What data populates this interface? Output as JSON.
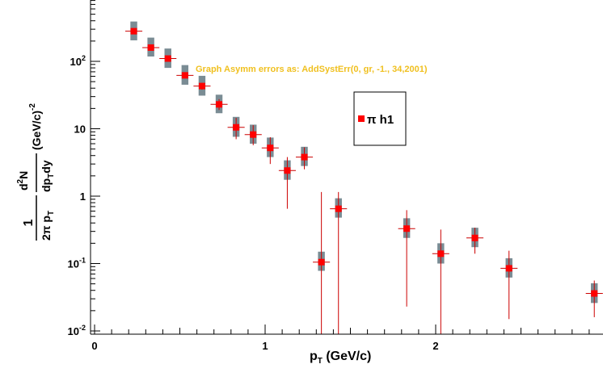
{
  "chart_data": {
    "type": "scatter",
    "title": "",
    "xlabel": "p",
    "xlabel_sub": "T",
    "xlabel_unit": " (GeV/c)",
    "ylabel": {
      "frac1_num": "1",
      "frac1_den_a": "2π p",
      "frac1_den_sub": "T",
      "frac2_num_a": "d",
      "frac2_num_sup": "2",
      "frac2_num_b": "N",
      "frac2_den_a": "dp",
      "frac2_den_sub": "T",
      "frac2_den_b": "dy",
      "unit_a": "(GeV/c)",
      "unit_sup": "-2"
    },
    "xlim": [
      0,
      3.0
    ],
    "ylim": [
      0.01,
      1000
    ],
    "yscale": "log",
    "grid": false,
    "x_ticks": [
      0,
      1,
      2
    ],
    "x_tick_labels": [
      "0",
      "1",
      "2"
    ],
    "y_ticks": [
      {
        "base": "10",
        "exp": "-2",
        "value": 0.01
      },
      {
        "base": "10",
        "exp": "-1",
        "value": 0.1
      },
      {
        "base": "1",
        "exp": "",
        "value": 1
      },
      {
        "base": "10",
        "exp": "",
        "value": 10
      },
      {
        "base": "10",
        "exp": "2",
        "value": 100
      }
    ],
    "annotation": "Graph Asymm errors as: AddSystErr(0, gr, -1., 34,2001)",
    "annotation_color": "#f0c020",
    "series": [
      {
        "name": "π h1",
        "marker_color": "#ff0000",
        "error_color": "#cc0000",
        "syst_box_color": "#7a8c94",
        "points": [
          {
            "x": 0.23,
            "y": 280,
            "ylo": 265,
            "yhi": 295,
            "slo": 205,
            "shi": 390,
            "dx": 0.05
          },
          {
            "x": 0.33,
            "y": 160,
            "ylo": 150,
            "yhi": 170,
            "slo": 118,
            "shi": 225,
            "dx": 0.05
          },
          {
            "x": 0.43,
            "y": 110,
            "ylo": 103,
            "yhi": 117,
            "slo": 80,
            "shi": 155,
            "dx": 0.05
          },
          {
            "x": 0.53,
            "y": 62,
            "ylo": 57,
            "yhi": 67,
            "slo": 45,
            "shi": 88,
            "dx": 0.05
          },
          {
            "x": 0.63,
            "y": 43,
            "ylo": 38,
            "yhi": 48,
            "slo": 31,
            "shi": 61,
            "dx": 0.05
          },
          {
            "x": 0.73,
            "y": 23,
            "ylo": 19,
            "yhi": 27.5,
            "slo": 17,
            "shi": 32,
            "dx": 0.05
          },
          {
            "x": 0.83,
            "y": 10.5,
            "ylo": 7,
            "yhi": 14.5,
            "slo": 7.6,
            "shi": 15,
            "dx": 0.05
          },
          {
            "x": 0.93,
            "y": 8.2,
            "ylo": 5.7,
            "yhi": 11.3,
            "slo": 6,
            "shi": 11.5,
            "dx": 0.05
          },
          {
            "x": 1.03,
            "y": 5.2,
            "ylo": 3,
            "yhi": 7.5,
            "slo": 3.8,
            "shi": 7.4,
            "dx": 0.05
          },
          {
            "x": 1.13,
            "y": 2.4,
            "ylo": 0.65,
            "yhi": 3.8,
            "slo": 1.75,
            "shi": 3.4,
            "dx": 0.05
          },
          {
            "x": 1.23,
            "y": 3.8,
            "ylo": 2.5,
            "yhi": 5.3,
            "slo": 2.8,
            "shi": 5.4,
            "dx": 0.05
          },
          {
            "x": 1.33,
            "y": 0.105,
            "ylo": 0.007,
            "yhi": 1.15,
            "slo": 0.078,
            "shi": 0.15,
            "dx": 0.05
          },
          {
            "x": 1.43,
            "y": 0.65,
            "ylo": 0.007,
            "yhi": 1.15,
            "slo": 0.48,
            "shi": 0.93,
            "dx": 0.05
          },
          {
            "x": 1.83,
            "y": 0.33,
            "ylo": 0.023,
            "yhi": 0.62,
            "slo": 0.24,
            "shi": 0.47,
            "dx": 0.05
          },
          {
            "x": 2.03,
            "y": 0.14,
            "ylo": 0.007,
            "yhi": 0.32,
            "slo": 0.1,
            "shi": 0.2,
            "dx": 0.05
          },
          {
            "x": 2.23,
            "y": 0.24,
            "ylo": 0.14,
            "yhi": 0.34,
            "slo": 0.175,
            "shi": 0.34,
            "dx": 0.05
          },
          {
            "x": 2.43,
            "y": 0.085,
            "ylo": 0.015,
            "yhi": 0.155,
            "slo": 0.062,
            "shi": 0.12,
            "dx": 0.05
          },
          {
            "x": 2.93,
            "y": 0.036,
            "ylo": 0.016,
            "yhi": 0.056,
            "slo": 0.026,
            "shi": 0.051,
            "dx": 0.05
          }
        ]
      }
    ],
    "legend": {
      "entries": [
        "π h1"
      ],
      "placement": "center-right"
    }
  }
}
